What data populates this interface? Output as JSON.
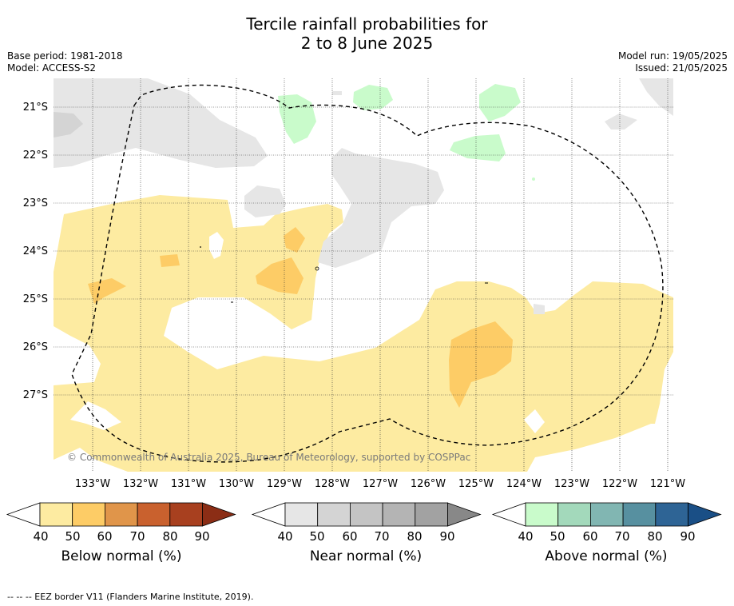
{
  "title_line1": "Tercile rainfall probabilities for",
  "title_line2": "2 to 8 June 2025",
  "meta": {
    "base_period": "Base period: 1981-2018",
    "model": "Model: ACCESS-S2",
    "model_run": "Model run: 19/05/2025",
    "issued": "Issued: 21/05/2025"
  },
  "lat_labels": [
    "21°S",
    "22°S",
    "23°S",
    "24°S",
    "25°S",
    "26°S",
    "27°S"
  ],
  "lon_labels": [
    "133°W",
    "132°W",
    "131°W",
    "130°W",
    "129°W",
    "128°W",
    "127°W",
    "126°W",
    "125°W",
    "124°W",
    "123°W",
    "122°W",
    "121°W"
  ],
  "copyright": "© Commonwealth of Australia 2025, Bureau of Meteorology, supported by COSPPac",
  "colorbars": [
    {
      "title": "Below normal (%)",
      "ticks": [
        "40",
        "50",
        "60",
        "70",
        "80",
        "90"
      ],
      "colors": [
        "#fdeba1",
        "#fdcc66",
        "#e0954a",
        "#c9612e",
        "#a8401f",
        "#8b2d15"
      ]
    },
    {
      "title": "Near normal (%)",
      "ticks": [
        "40",
        "50",
        "60",
        "70",
        "80",
        "90"
      ],
      "colors": [
        "#e6e6e6",
        "#d4d4d4",
        "#c4c4c4",
        "#b4b4b4",
        "#a2a2a2",
        "#888888"
      ]
    },
    {
      "title": "Above normal (%)",
      "ticks": [
        "40",
        "50",
        "60",
        "70",
        "80",
        "90"
      ],
      "colors": [
        "#c9fbcb",
        "#a3d9bb",
        "#81b6b2",
        "#5790a0",
        "#2e6495",
        "#1a4f86"
      ]
    }
  ],
  "footnote": "--  --  -- EEZ border V11 (Flanders Marine Institute, 2019)."
}
